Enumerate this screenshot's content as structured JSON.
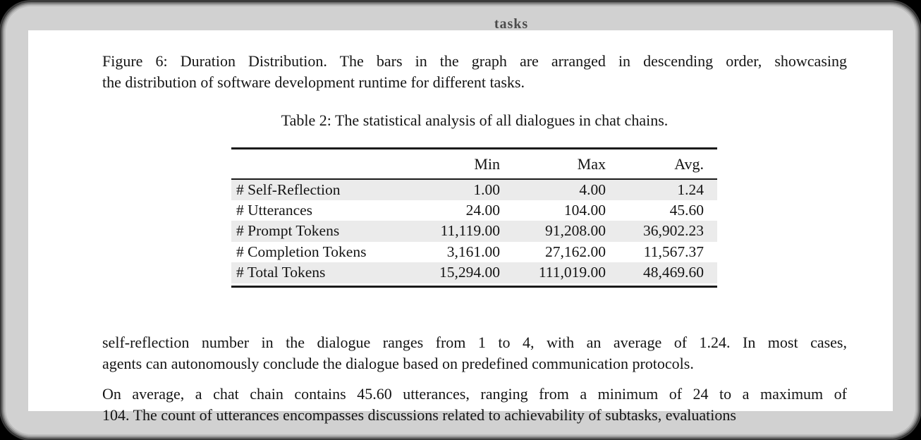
{
  "page": {
    "top_clipped_text": "tasks",
    "figure_caption_lines": [
      "Figure 6: Duration Distribution. The bars in the graph are arranged in descending order, showcasing",
      "the distribution of software development runtime for different tasks."
    ],
    "table": {
      "caption": "Table 2: The statistical analysis of all dialogues in chat chains.",
      "columns": [
        "",
        "Min",
        "Max",
        "Avg."
      ],
      "rows": [
        {
          "label": "# Self-Reflection",
          "values": [
            "1.00",
            "4.00",
            "1.24"
          ]
        },
        {
          "label": "# Utterances",
          "values": [
            "24.00",
            "104.00",
            "45.60"
          ]
        },
        {
          "label": "# Prompt Tokens",
          "values": [
            "11,119.00",
            "91,208.00",
            "36,902.23"
          ]
        },
        {
          "label": "# Completion Tokens",
          "values": [
            "3,161.00",
            "27,162.00",
            "11,567.37"
          ]
        },
        {
          "label": "# Total Tokens",
          "values": [
            "15,294.00",
            "111,019.00",
            "48,469.60"
          ]
        }
      ]
    },
    "paragraphs": [
      {
        "lines": [
          "self-reflection number in the dialogue ranges from 1 to 4, with an average of 1.24. In most cases,",
          "agents can autonomously conclude the dialogue based on predefined communication protocols."
        ]
      },
      {
        "lines": [
          "On average, a chat chain contains 45.60 utterances, ranging from a minimum of 24 to a maximum of",
          "104. The count of utterances encompasses discussions related to achievability of subtasks, evaluations"
        ]
      }
    ],
    "colors": {
      "canvas_bg": "#000000",
      "window_bg": "#d1d1d1",
      "page_bg": "#ffffff",
      "row_stripe": "#ebebeb",
      "rule": "#1a1a1a",
      "text": "#141414"
    }
  }
}
